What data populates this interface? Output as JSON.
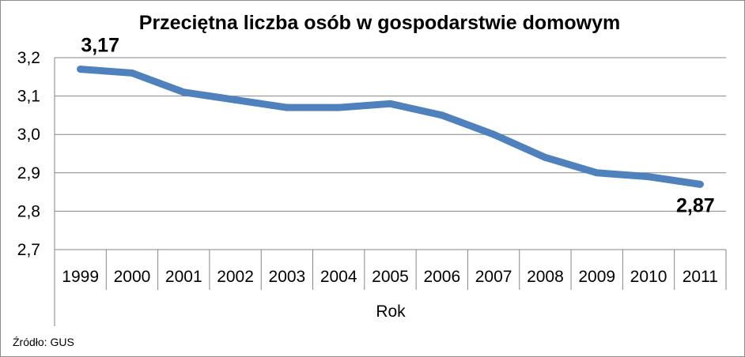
{
  "chart_data": {
    "type": "line",
    "title": "Przeciętna liczba osób w gospodarstwie domowym",
    "xlabel": "Rok",
    "ylabel": "",
    "categories": [
      "1999",
      "2000",
      "2001",
      "2002",
      "2003",
      "2004",
      "2005",
      "2006",
      "2007",
      "2008",
      "2009",
      "2010",
      "2011"
    ],
    "series": [
      {
        "values": [
          3.17,
          3.16,
          3.11,
          3.09,
          3.07,
          3.07,
          3.08,
          3.05,
          3.0,
          2.94,
          2.9,
          2.89,
          2.87
        ]
      }
    ],
    "ylim": [
      2.7,
      3.2
    ],
    "yticks": [
      "2,7",
      "2,8",
      "2,9",
      "3,0",
      "3,1",
      "3,2"
    ],
    "data_labels": [
      {
        "index": 0,
        "text": "3,17"
      },
      {
        "index": 12,
        "text": "2,87"
      }
    ],
    "grid": true,
    "legend": "none",
    "line_color": "#4f81bd",
    "grid_color": "#868686"
  },
  "source": "Źródło: GUS"
}
